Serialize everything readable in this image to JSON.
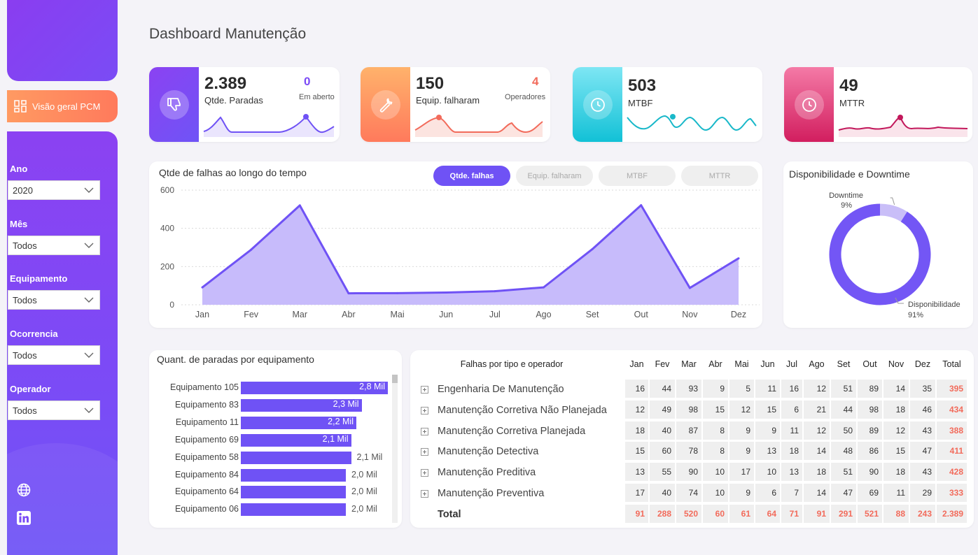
{
  "page": {
    "title": "Dashboard Manutenção"
  },
  "nav": {
    "label": "Visão geral PCM"
  },
  "filters": [
    {
      "label": "Ano",
      "value": "2020"
    },
    {
      "label": "Mês",
      "value": "Todos"
    },
    {
      "label": "Equipamento",
      "value": "Todos"
    },
    {
      "label": "Ocorrencia",
      "value": "Todos"
    },
    {
      "label": "Operador",
      "value": "Todos"
    }
  ],
  "kpis": {
    "paradas": {
      "value": "2.389",
      "label": "Qtde. Paradas",
      "sub_value": "0",
      "sub_label": "Em aberto",
      "color": "#7b4bf6"
    },
    "equip": {
      "value": "150",
      "label": "Equip. falharam",
      "sub_value": "4",
      "sub_label": "Operadores",
      "color": "#ff7a5c"
    },
    "mtbf": {
      "value": "503",
      "label": "MTBF",
      "color": "#19c3d6"
    },
    "mttr": {
      "value": "49",
      "label": "MTTR",
      "color": "#d21e5f"
    }
  },
  "colors": {
    "accent": "#6f52f5",
    "area": "#c7bbfb",
    "orange": "#f26b5b",
    "teal": "#19b8c9",
    "crimson": "#c2185b"
  },
  "timeline": {
    "title": "Qtde de falhas ao longo do tempo",
    "tabs": [
      "Qtde. falhas",
      "Equip. falharam",
      "MTBF",
      "MTTR"
    ],
    "active_tab": "Qtde. falhas"
  },
  "chart_data": [
    {
      "type": "area",
      "title": "Qtde de falhas ao longo do tempo",
      "categories": [
        "Jan",
        "Fev",
        "Mar",
        "Abr",
        "Mai",
        "Jun",
        "Jul",
        "Ago",
        "Set",
        "Out",
        "Nov",
        "Dez"
      ],
      "values": [
        91,
        288,
        520,
        60,
        61,
        64,
        71,
        91,
        291,
        521,
        88,
        243
      ],
      "yticks": [
        "0",
        "200",
        "400",
        "600"
      ],
      "ylim": [
        0,
        600
      ],
      "grid": true
    },
    {
      "type": "pie",
      "title": "Disponibilidade e Downtime",
      "labels": [
        "Downtime",
        "Disponibilidade"
      ],
      "values": [
        9,
        91
      ],
      "value_labels": [
        "9%",
        "91%"
      ],
      "colors": [
        "#c9bef8",
        "#7356f5"
      ]
    },
    {
      "type": "bar",
      "title": "Quant. de paradas por equipamento",
      "categories": [
        "Equipamento 105",
        "Equipamento 83",
        "Equipamento 11",
        "Equipamento 69",
        "Equipamento 58",
        "Equipamento 84",
        "Equipamento 64",
        "Equipamento 06"
      ],
      "values": [
        2800,
        2300,
        2200,
        2100,
        2100,
        2000,
        2000,
        2000
      ],
      "value_labels": [
        "2,8 Mil",
        "2,3 Mil",
        "2,2 Mil",
        "2,1 Mil",
        "2,1 Mil",
        "2,0 Mil",
        "2,0 Mil",
        "2,0 Mil"
      ]
    },
    {
      "type": "table",
      "title": "Falhas por tipo e operador",
      "columns": [
        "Jan",
        "Fev",
        "Mar",
        "Abr",
        "Mai",
        "Jun",
        "Jul",
        "Ago",
        "Set",
        "Out",
        "Nov",
        "Dez",
        "Total"
      ],
      "rows": [
        {
          "label": "Engenharia De Manutenção",
          "values": [
            "16",
            "44",
            "93",
            "9",
            "5",
            "11",
            "16",
            "12",
            "51",
            "89",
            "14",
            "35",
            "395"
          ]
        },
        {
          "label": "Manutenção Corretiva Não Planejada",
          "values": [
            "12",
            "49",
            "98",
            "15",
            "12",
            "15",
            "6",
            "21",
            "44",
            "98",
            "18",
            "46",
            "434"
          ]
        },
        {
          "label": "Manutenção Corretiva Planejada",
          "values": [
            "18",
            "40",
            "87",
            "8",
            "9",
            "9",
            "11",
            "12",
            "50",
            "89",
            "12",
            "43",
            "388"
          ]
        },
        {
          "label": "Manutenção Detectiva",
          "values": [
            "15",
            "60",
            "78",
            "8",
            "9",
            "13",
            "18",
            "14",
            "48",
            "86",
            "15",
            "47",
            "411"
          ]
        },
        {
          "label": "Manutenção Preditiva",
          "values": [
            "13",
            "55",
            "90",
            "10",
            "17",
            "10",
            "13",
            "18",
            "51",
            "90",
            "18",
            "43",
            "428"
          ]
        },
        {
          "label": "Manutenção Preventiva",
          "values": [
            "17",
            "40",
            "74",
            "10",
            "9",
            "6",
            "7",
            "14",
            "47",
            "69",
            "11",
            "29",
            "333"
          ]
        }
      ],
      "total": {
        "label": "Total",
        "values": [
          "91",
          "288",
          "520",
          "60",
          "61",
          "64",
          "71",
          "91",
          "291",
          "521",
          "88",
          "243",
          "2.389"
        ]
      }
    }
  ]
}
